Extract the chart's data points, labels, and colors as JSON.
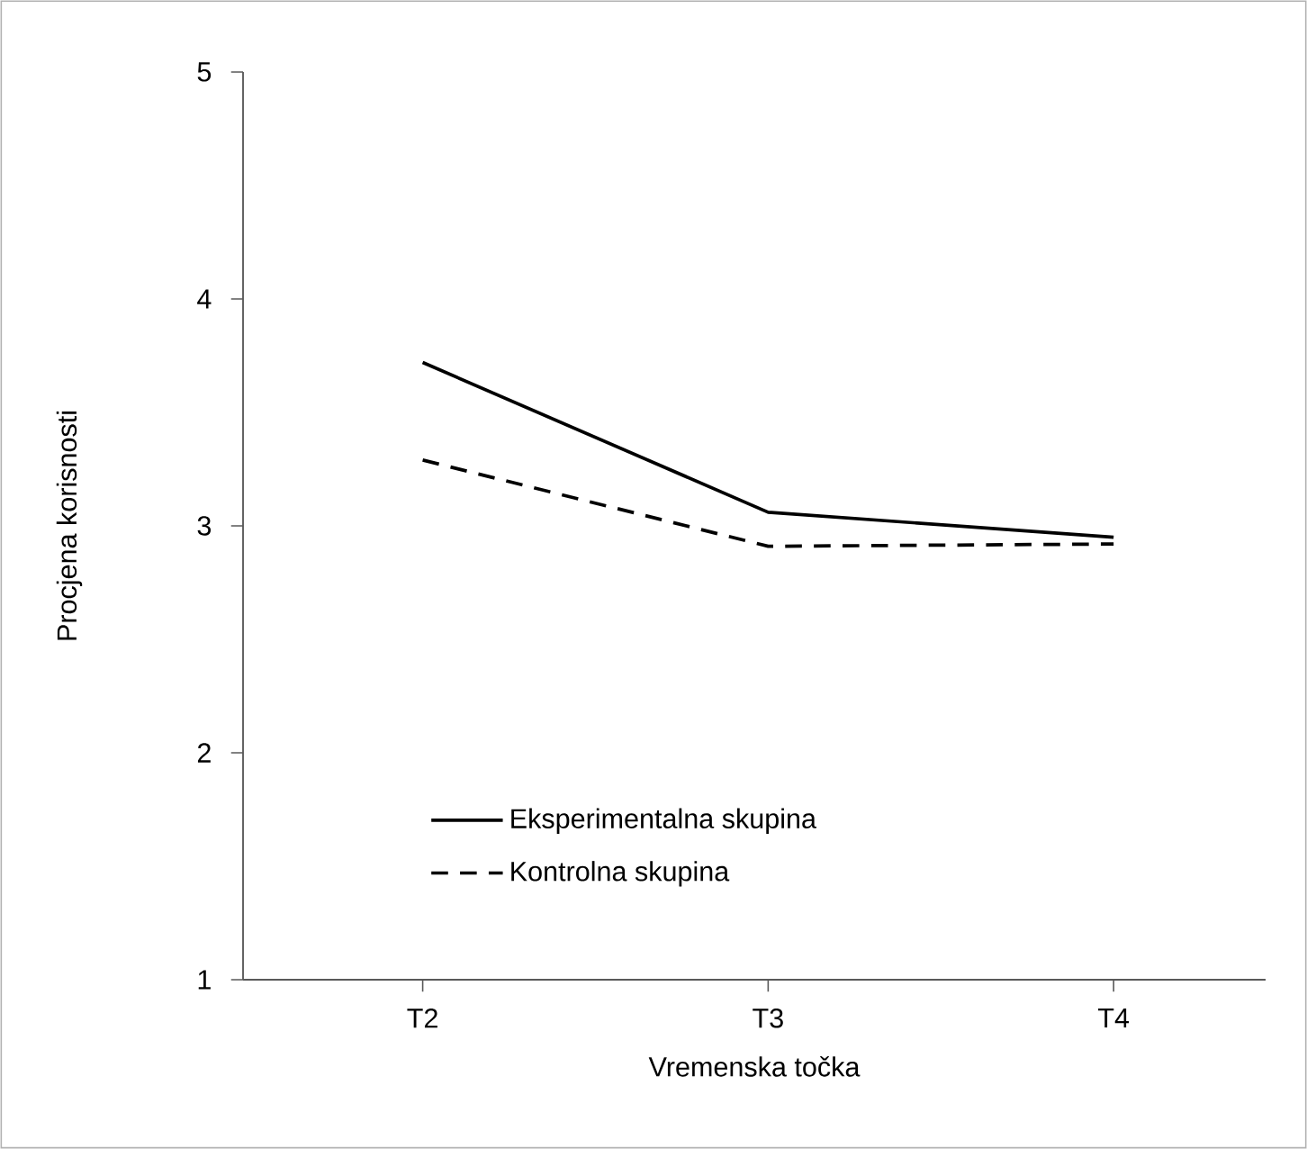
{
  "chart_data": {
    "type": "line",
    "xlabel": "Vremenska točka",
    "ylabel": "Procjena korisnosti",
    "categories": [
      "T2",
      "T3",
      "T4"
    ],
    "series": [
      {
        "name": "Eksperimentalna skupina",
        "color": "#000000",
        "line_style": "solid",
        "values": [
          3.72,
          3.06,
          2.95
        ]
      },
      {
        "name": "Kontrolna skupina",
        "color": "#000000",
        "line_style": "dashed",
        "values": [
          3.29,
          2.91,
          2.92
        ]
      }
    ],
    "ylim": [
      1,
      5
    ],
    "yticks": [
      1,
      2,
      3,
      4,
      5
    ],
    "grid": false,
    "legend": "bottom left",
    "marker": "none"
  }
}
